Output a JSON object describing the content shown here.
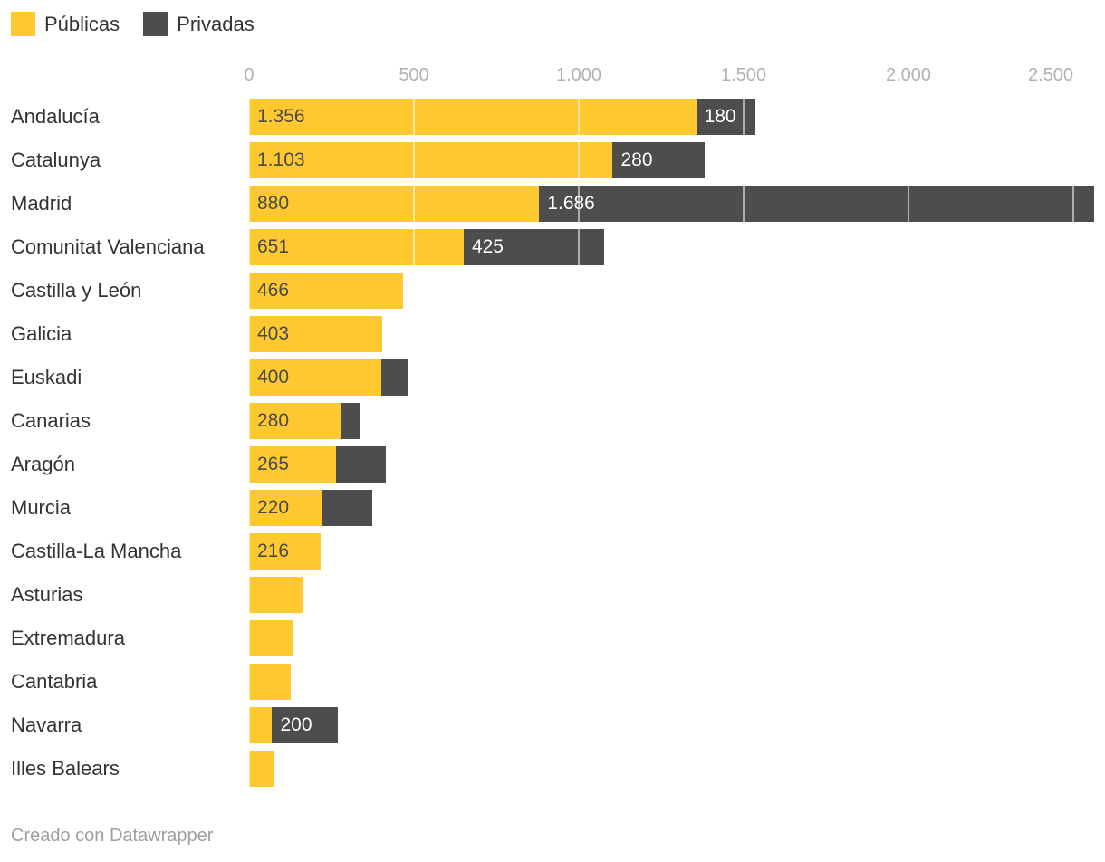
{
  "legend": {
    "items": [
      {
        "label": "Públicas",
        "color": "#FDC830"
      },
      {
        "label": "Privadas",
        "color": "#4D4D4D"
      }
    ]
  },
  "axis": {
    "tick_labels": [
      "0",
      "500",
      "1.000",
      "1.500",
      "2.000",
      "2.500"
    ],
    "tick_values": [
      0,
      500,
      1000,
      1500,
      2000,
      2500
    ],
    "max": 2500
  },
  "chart_data": {
    "type": "bar",
    "stacked": true,
    "orientation": "horizontal",
    "title": "",
    "xlabel": "",
    "ylabel": "",
    "xlim": [
      0,
      2500
    ],
    "grid": "white overlay lines on bars at ticks",
    "legend_position": "top-left",
    "categories": [
      "Andalucía",
      "Catalunya",
      "Madrid",
      "Comunitat Valenciana",
      "Castilla y León",
      "Galicia",
      "Euskadi",
      "Canarias",
      "Aragón",
      "Murcia",
      "Castilla-La Mancha",
      "Asturias",
      "Extremadura",
      "Cantabria",
      "Navarra",
      "Illes Balears"
    ],
    "series": [
      {
        "name": "Públicas",
        "color": "#FDC830",
        "label_color": "#4A4A4A",
        "values": [
          1356,
          1103,
          880,
          651,
          466,
          403,
          400,
          280,
          265,
          220,
          216,
          165,
          135,
          125,
          70,
          75
        ],
        "labels": [
          "1.356",
          "1.103",
          "880",
          "651",
          "466",
          "403",
          "400",
          "280",
          "265",
          "220",
          "216",
          "",
          "",
          "",
          "",
          ""
        ]
      },
      {
        "name": "Privadas",
        "color": "#4D4D4D",
        "label_color": "#FFFFFF",
        "values": [
          180,
          280,
          1686,
          425,
          0,
          0,
          80,
          55,
          150,
          155,
          0,
          0,
          0,
          0,
          200,
          0
        ],
        "labels": [
          "180",
          "280",
          "1.686",
          "425",
          "",
          "",
          "",
          "",
          "",
          "",
          "",
          "",
          "",
          "",
          "200",
          ""
        ]
      }
    ]
  },
  "footer": {
    "credit": "Creado con Datawrapper"
  },
  "colors": {
    "background": "#FFFFFF",
    "publicas": "#FDC830",
    "privadas": "#4D4D4D",
    "category_label": "#333333",
    "axis_tick": "#B1B1B1",
    "credit": "#9E9E9E"
  }
}
